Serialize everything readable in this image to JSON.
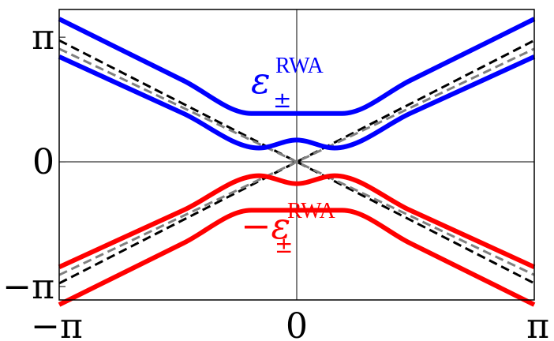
{
  "chart_data": {
    "type": "line",
    "title": "",
    "xlabel": "",
    "ylabel": "",
    "xlim": [
      -3.14159,
      3.14159
    ],
    "ylim": [
      -3.48,
      3.84
    ],
    "x_ticks": [
      {
        "value": -3.14159,
        "label": "−π"
      },
      {
        "value": 0,
        "label": "0"
      },
      {
        "value": 3.14159,
        "label": "π"
      }
    ],
    "y_ticks": [
      {
        "value": -3.14159,
        "label": "−π"
      },
      {
        "value": 0,
        "label": "0"
      },
      {
        "value": 3.14159,
        "label": "π"
      }
    ],
    "grid": false,
    "reference_lines": [
      "x=0",
      "y=0"
    ],
    "curve_labels": [
      {
        "text": "ε",
        "superscript": "RWA",
        "subscript": "±",
        "color": "#0000ff"
      },
      {
        "text": "−ε",
        "superscript": "RWA",
        "subscript": "±",
        "color": "#ff0000"
      }
    ],
    "series": [
      {
        "color": "#0000ff",
        "style": "solid",
        "x": [
          -3.14159,
          -1.5,
          -0.6,
          0,
          0.6,
          1.5,
          3.14159
        ],
        "values": [
          3.6,
          2.05,
          1.22,
          1.22,
          1.22,
          2.05,
          3.6
        ]
      },
      {
        "color": "#0000ff",
        "style": "solid",
        "x": [
          -3.14159,
          -1.5,
          -0.5,
          0,
          0.5,
          1.5,
          3.14159
        ],
        "values": [
          2.65,
          1.22,
          0.35,
          0.55,
          0.35,
          1.22,
          2.65
        ]
      },
      {
        "color": "#ff0000",
        "style": "solid",
        "x": [
          -3.14159,
          -1.5,
          -0.5,
          0,
          0.5,
          1.5,
          3.14159
        ],
        "values": [
          -2.65,
          -1.22,
          -0.35,
          -0.55,
          -0.35,
          -1.22,
          -2.65
        ]
      },
      {
        "color": "#ff0000",
        "style": "solid",
        "x": [
          -3.14159,
          -1.5,
          -0.6,
          0,
          0.6,
          1.5,
          3.14159
        ],
        "values": [
          -3.6,
          -2.05,
          -1.22,
          -1.22,
          -1.22,
          -2.05,
          -3.6
        ]
      },
      {
        "color": "#000000",
        "style": "dashed",
        "x": [
          -3.14159,
          3.14159
        ],
        "values": [
          3.06,
          -3.06
        ]
      },
      {
        "color": "#000000",
        "style": "dashed",
        "x": [
          -3.14159,
          3.14159
        ],
        "values": [
          -3.06,
          3.06
        ]
      },
      {
        "color": "#808080",
        "style": "dashed",
        "x": [
          -3.14159,
          3.14159
        ],
        "values": [
          2.85,
          -2.85
        ]
      },
      {
        "color": "#808080",
        "style": "dashed",
        "x": [
          -3.14159,
          3.14159
        ],
        "values": [
          -2.85,
          2.85
        ]
      }
    ]
  }
}
